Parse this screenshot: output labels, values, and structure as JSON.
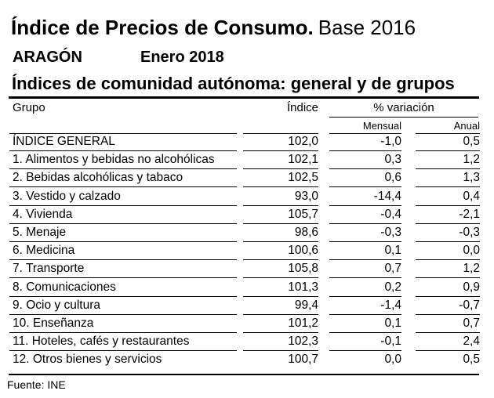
{
  "title": {
    "main": "Índice de Precios de Consumo.",
    "base": "Base 2016"
  },
  "region": "ARAGÓN",
  "period": "Enero 2018",
  "subtitle": "Índices de comunidad autónoma: general y de grupos",
  "headers": {
    "grupo": "Grupo",
    "indice": "Índice",
    "variacion": "% variación",
    "mensual": "Mensual",
    "anual": "Anual"
  },
  "rows": [
    {
      "grupo": "ÍNDICE GENERAL",
      "indice": "102,0",
      "mensual": "-1,0",
      "anual": "0,5"
    },
    {
      "grupo": "1. Alimentos y bebidas no alcohólicas",
      "indice": "102,1",
      "mensual": "0,3",
      "anual": "1,2"
    },
    {
      "grupo": "2. Bebidas alcohólicas y tabaco",
      "indice": "102,5",
      "mensual": "0,6",
      "anual": "1,3"
    },
    {
      "grupo": "3. Vestido y calzado",
      "indice": "93,0",
      "mensual": "-14,4",
      "anual": "0,4"
    },
    {
      "grupo": "4. Vivienda",
      "indice": "105,7",
      "mensual": "-0,4",
      "anual": "-2,1"
    },
    {
      "grupo": "5. Menaje",
      "indice": "98,6",
      "mensual": "-0,3",
      "anual": "-0,3"
    },
    {
      "grupo": "6. Medicina",
      "indice": "100,6",
      "mensual": "0,1",
      "anual": "0,0"
    },
    {
      "grupo": "7. Transporte",
      "indice": "105,8",
      "mensual": "0,7",
      "anual": "1,2"
    },
    {
      "grupo": "8. Comunicaciones",
      "indice": "101,3",
      "mensual": "0,2",
      "anual": "0,9"
    },
    {
      "grupo": "9. Ocio y cultura",
      "indice": "99,4",
      "mensual": "-1,4",
      "anual": "-0,7"
    },
    {
      "grupo": "10. Enseñanza",
      "indice": "101,2",
      "mensual": "0,1",
      "anual": "0,7"
    },
    {
      "grupo": "11. Hoteles, cafés y restaurantes",
      "indice": "102,3",
      "mensual": "-0,1",
      "anual": "2,4"
    },
    {
      "grupo": "12. Otros bienes y servicios",
      "indice": "100,7",
      "mensual": "0,0",
      "anual": "0,5"
    }
  ],
  "source": "Fuente: INE"
}
